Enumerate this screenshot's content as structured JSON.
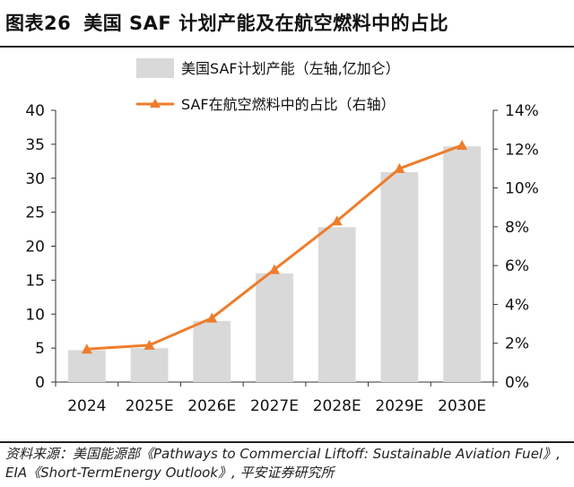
{
  "header": {
    "figure_number": "图表26",
    "title": "美国 SAF 计划产能及在航空燃料中的占比"
  },
  "chart_data": {
    "type": "bar",
    "categories": [
      "2024",
      "2025E",
      "2026E",
      "2027E",
      "2028E",
      "2029E",
      "2030E"
    ],
    "series": [
      {
        "name": "美国SAF计划产能（左轴,亿加仑）",
        "type": "bar",
        "axis": "left",
        "values": [
          4.7,
          5.0,
          9.0,
          16.0,
          22.8,
          30.9,
          34.7
        ]
      },
      {
        "name": "SAF在航空燃料中的占比（右轴）",
        "type": "line",
        "axis": "right",
        "values": [
          0.017,
          0.019,
          0.033,
          0.058,
          0.083,
          0.11,
          0.122
        ]
      }
    ],
    "left_axis": {
      "min": 0,
      "max": 40,
      "ticks": [
        0,
        5,
        10,
        15,
        20,
        25,
        30,
        35,
        40
      ],
      "tick_labels": [
        "0",
        "5",
        "10",
        "15",
        "20",
        "25",
        "30",
        "35",
        "40"
      ]
    },
    "right_axis": {
      "min": 0,
      "max": 0.14,
      "ticks": [
        0,
        0.02,
        0.04,
        0.06,
        0.08,
        0.1,
        0.12,
        0.14
      ],
      "tick_labels": [
        "0%",
        "2%",
        "4%",
        "6%",
        "8%",
        "10%",
        "12%",
        "14%"
      ]
    },
    "legend": {
      "placement": "top-center",
      "entries": [
        "美国SAF计划产能（左轴,亿加仑）",
        "SAF在航空燃料中的占比（右轴）"
      ]
    },
    "grid": false,
    "colors": {
      "bar": "#d9d9d9",
      "line": "#ee7d2b",
      "axis": "#333333"
    }
  },
  "footer": {
    "source_text": "资料来源：美国能源部《Pathways to Commercial Liftoff: Sustainable Aviation Fuel》, EIA《Short-TermEnergy Outlook》, 平安证券研究所"
  }
}
